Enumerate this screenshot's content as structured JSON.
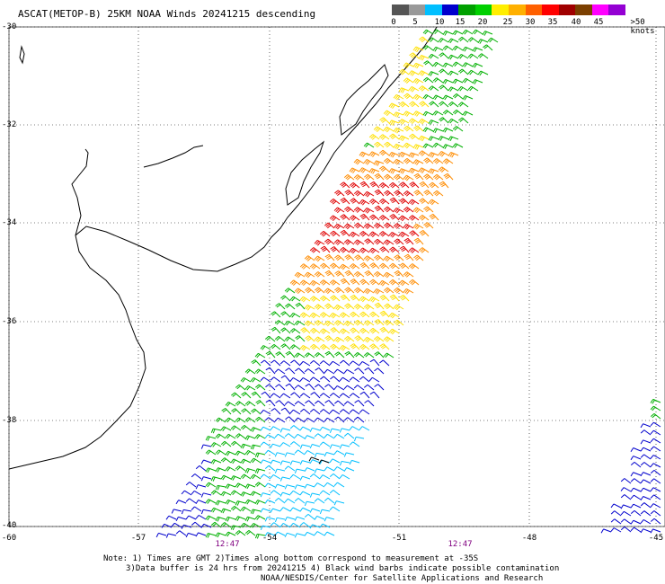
{
  "title": "ASCAT(METOP-B) 25KM NOAA Winds 20241215 descending",
  "color_scale": {
    "labels": [
      "0",
      "5",
      "10",
      "15",
      "20",
      "25",
      "30",
      "35",
      "40",
      "45",
      ">50 knots"
    ],
    "colors": [
      "#555555",
      "#999999",
      "#00bfff",
      "#0000cd",
      "#00a000",
      "#00d000",
      "#ffee00",
      "#ffb000",
      "#ff6000",
      "#ff0000",
      "#a00000",
      "#7b3f00",
      "#ff00ff",
      "#9400d3"
    ]
  },
  "axes": {
    "lat_labels": [
      "-30",
      "-32",
      "-34",
      "-36",
      "-38",
      "-40"
    ],
    "lon_labels": [
      "-60",
      "-57",
      "-54",
      "-51",
      "-48",
      "-45"
    ]
  },
  "pass_times": [
    "12:47",
    "12:47"
  ],
  "notes": {
    "line1": "Note: 1) Times are GMT 2)Times along bottom correspond to measurement at -35S",
    "line2": "3)Data buffer is 24 hrs from 20241215 4) Black wind barbs indicate possible contamination",
    "line3": "NOAA/NESDIS/Center for Satellite Applications and Research"
  },
  "wind_speed_colors": {
    "calm": "#00bfff",
    "light": "#0000cd",
    "moderate": "#00b000",
    "fresh": "#ffe000",
    "strong": "#ff8c00",
    "gale": "#e00000",
    "storm": "#8b4513"
  }
}
